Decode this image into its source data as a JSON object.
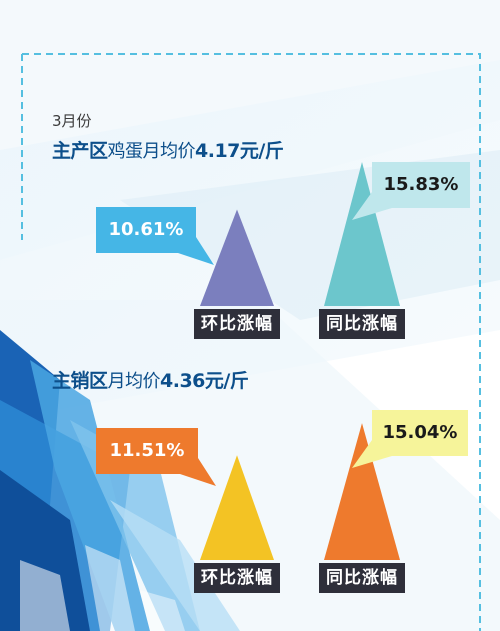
{
  "month_label": "3月份",
  "panels": [
    {
      "heading_bold": "主产区",
      "heading_mid": "鸡蛋月均价",
      "heading_tail": "4.17元/斤"
    },
    {
      "heading_bold": "主销区",
      "heading_mid": "月均价",
      "heading_tail": "4.36元/斤"
    }
  ],
  "colors": {
    "producer_mom": "#7b7fbe",
    "producer_yoy": "#6cc6cc",
    "consumer_mom": "#f3c324",
    "consumer_yoy": "#ee7a2d",
    "callout_blue": "#45b6e6",
    "callout_teal": "#bfe7ec",
    "callout_orange": "#ee7a2d",
    "callout_yellow": "#f6f49a",
    "dash": "#55bfe0"
  },
  "chart_data": [
    {
      "type": "bar",
      "title": "主产区鸡蛋月均价4.17元/斤",
      "categories": [
        "环比涨幅",
        "同比涨幅"
      ],
      "values": [
        10.61,
        15.83
      ],
      "value_labels": [
        "10.61%",
        "15.83%"
      ],
      "unit": "%"
    },
    {
      "type": "bar",
      "title": "主销区月均价4.36元/斤",
      "categories": [
        "环比涨幅",
        "同比涨幅"
      ],
      "values": [
        11.51,
        15.04
      ],
      "value_labels": [
        "11.51%",
        "15.04%"
      ],
      "unit": "%"
    }
  ]
}
